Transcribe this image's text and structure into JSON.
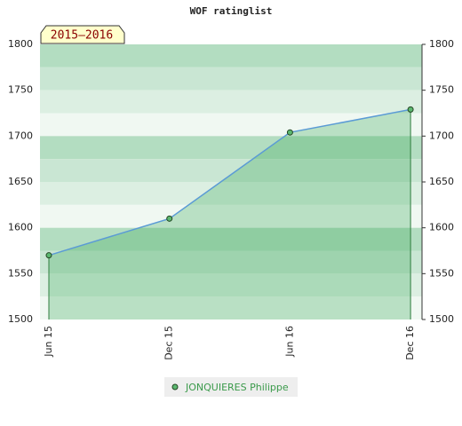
{
  "chart_data": {
    "type": "line",
    "title": "WOF ratinglist",
    "badge": "2015–2016",
    "categories": [
      "Jun 15",
      "Dec 15",
      "Jun 16",
      "Dec 16"
    ],
    "series": [
      {
        "name": "JONQUIERES Philippe",
        "color": "#5b9bd5",
        "values": [
          1570,
          1610,
          1704,
          1729
        ]
      }
    ],
    "ylim": [
      1500,
      1800
    ],
    "yticks": [
      1500,
      1550,
      1600,
      1650,
      1700,
      1750,
      1800
    ]
  }
}
